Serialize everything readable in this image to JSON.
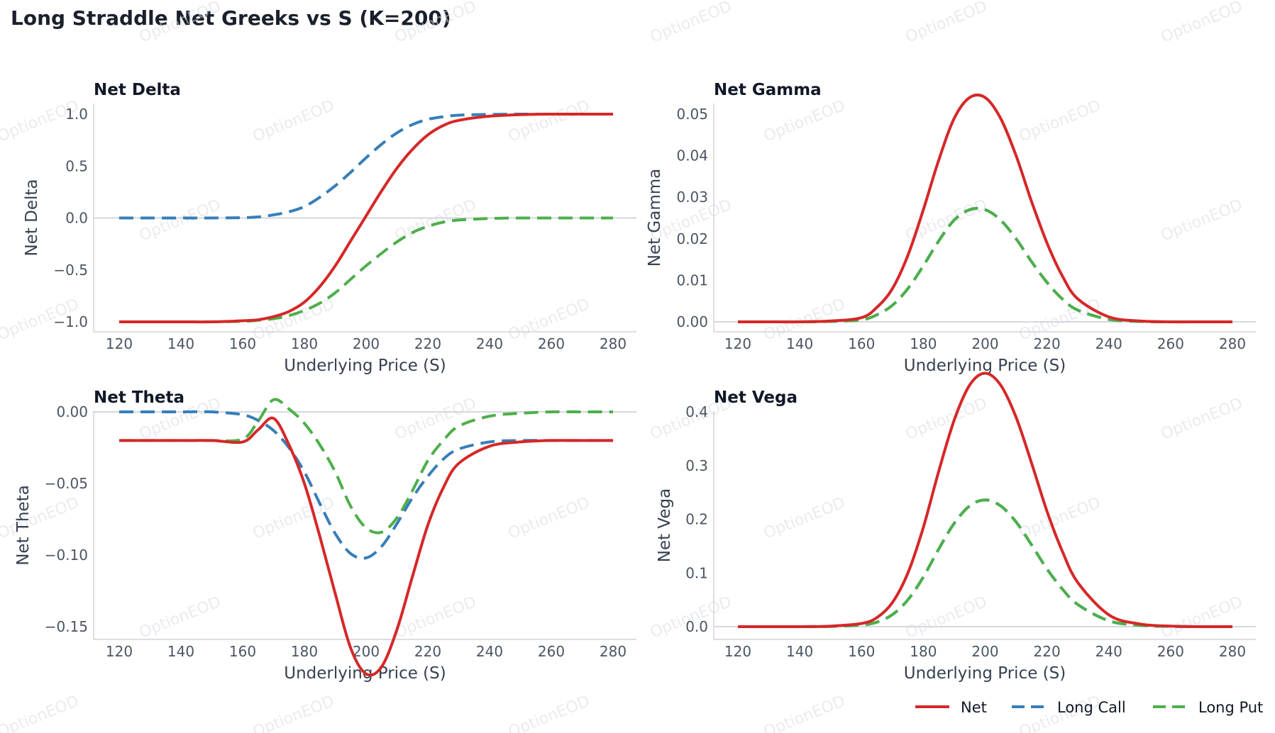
{
  "title": "Long Straddle Net Greeks vs S (K=200)",
  "watermark": "OptionEOD",
  "colors": {
    "net": "#d62728",
    "call": "#377eb8",
    "put": "#4daf4a"
  },
  "legend": {
    "placement": "bottom-right",
    "items": [
      {
        "key": "net",
        "label": "Net",
        "style": "solid"
      },
      {
        "key": "call",
        "label": "Long Call",
        "style": "dashed"
      },
      {
        "key": "put",
        "label": "Long Put",
        "style": "dashed"
      }
    ]
  },
  "chart_data": [
    {
      "type": "line",
      "title": "Net Delta",
      "xlabel": "Underlying Price (S)",
      "ylabel": "Net Delta",
      "xlim": [
        112,
        288
      ],
      "ylim": [
        -1.05,
        1.1
      ],
      "xticks": [
        120,
        140,
        160,
        180,
        200,
        220,
        240,
        260,
        280
      ],
      "yticks": [
        -1.0,
        -0.5,
        0.0,
        0.5,
        1.0
      ],
      "ytick_labels": [
        "−1.0",
        "−0.5",
        "0.0",
        "0.5",
        "1.0"
      ],
      "zero_line": true,
      "grid": false,
      "x": [
        120,
        130,
        140,
        150,
        160,
        165,
        170,
        175,
        180,
        185,
        190,
        195,
        200,
        205,
        210,
        215,
        220,
        225,
        230,
        240,
        250,
        260,
        270,
        280
      ],
      "series": [
        {
          "name": "Net",
          "key": "net",
          "values": [
            -1.0,
            -1.0,
            -1.0,
            -1.0,
            -0.99,
            -0.98,
            -0.95,
            -0.9,
            -0.81,
            -0.66,
            -0.46,
            -0.22,
            0.02,
            0.26,
            0.48,
            0.66,
            0.8,
            0.89,
            0.94,
            0.98,
            0.995,
            1.0,
            1.0,
            1.0
          ]
        },
        {
          "name": "Long Call",
          "key": "call",
          "values": [
            0.0,
            0.0,
            0.0,
            0.0,
            0.003,
            0.01,
            0.03,
            0.06,
            0.11,
            0.2,
            0.31,
            0.44,
            0.58,
            0.71,
            0.82,
            0.9,
            0.95,
            0.975,
            0.99,
            0.997,
            1.0,
            1.0,
            1.0,
            1.0
          ]
        },
        {
          "name": "Long Put",
          "key": "put",
          "values": [
            -1.0,
            -1.0,
            -1.0,
            -1.0,
            -0.995,
            -0.985,
            -0.97,
            -0.94,
            -0.89,
            -0.82,
            -0.72,
            -0.59,
            -0.46,
            -0.34,
            -0.23,
            -0.14,
            -0.08,
            -0.04,
            -0.02,
            -0.005,
            0.0,
            0.0,
            0.0,
            0.0
          ]
        }
      ]
    },
    {
      "type": "line",
      "title": "Net Gamma",
      "xlabel": "Underlying Price (S)",
      "ylabel": "Net Gamma",
      "xlim": [
        112,
        288
      ],
      "ylim": [
        -0.003,
        0.057
      ],
      "xticks": [
        120,
        140,
        160,
        180,
        200,
        220,
        240,
        260,
        280
      ],
      "yticks": [
        0.0,
        0.01,
        0.02,
        0.03,
        0.04,
        0.05
      ],
      "ytick_labels": [
        "0.00",
        "0.01",
        "0.02",
        "0.03",
        "0.04",
        "0.05"
      ],
      "zero_line": true,
      "grid": false,
      "x": [
        120,
        130,
        140,
        150,
        160,
        165,
        170,
        175,
        180,
        185,
        190,
        195,
        200,
        205,
        210,
        215,
        220,
        225,
        230,
        240,
        250,
        260,
        270,
        280
      ],
      "series": [
        {
          "name": "Net",
          "key": "net",
          "values": [
            0.0,
            0.0,
            0.0,
            0.0002,
            0.001,
            0.0035,
            0.008,
            0.016,
            0.027,
            0.039,
            0.049,
            0.054,
            0.054,
            0.049,
            0.04,
            0.029,
            0.019,
            0.011,
            0.0055,
            0.0012,
            0.0002,
            0.0,
            0.0,
            0.0
          ]
        },
        {
          "name": "Long Call",
          "key": "call",
          "values": [
            0.0,
            0.0,
            0.0,
            0.0001,
            0.0005,
            0.0017,
            0.004,
            0.008,
            0.0135,
            0.0195,
            0.0245,
            0.027,
            0.027,
            0.0245,
            0.02,
            0.0145,
            0.0095,
            0.0055,
            0.0028,
            0.0006,
            0.0001,
            0.0,
            0.0,
            0.0
          ]
        },
        {
          "name": "Long Put",
          "key": "put",
          "values": [
            0.0,
            0.0,
            0.0,
            0.0001,
            0.0005,
            0.0017,
            0.004,
            0.008,
            0.0135,
            0.0195,
            0.0245,
            0.027,
            0.027,
            0.0245,
            0.02,
            0.0145,
            0.0095,
            0.0055,
            0.0028,
            0.0006,
            0.0001,
            0.0,
            0.0,
            0.0
          ]
        }
      ]
    },
    {
      "type": "line",
      "title": "Net Theta",
      "xlabel": "Underlying Price (S)",
      "ylabel": "Net Theta",
      "xlim": [
        112,
        288
      ],
      "ylim": [
        -0.195,
        0.0
      ],
      "xticks": [
        120,
        140,
        160,
        180,
        200,
        220,
        240,
        260,
        280
      ],
      "yticks": [
        -0.15,
        -0.1,
        -0.05,
        0.0
      ],
      "ytick_labels": [
        "−0.15",
        "−0.10",
        "−0.05",
        "0.00"
      ],
      "zero_line": true,
      "grid": false,
      "x": [
        120,
        130,
        140,
        150,
        160,
        165,
        170,
        175,
        180,
        185,
        190,
        195,
        200,
        205,
        210,
        215,
        220,
        225,
        230,
        240,
        250,
        260,
        270,
        280
      ],
      "series": [
        {
          "name": "Net",
          "key": "net",
          "values": [
            -0.02,
            -0.02,
            -0.02,
            -0.02,
            -0.021,
            -0.0125,
            -0.0045,
            -0.023,
            -0.05,
            -0.087,
            -0.127,
            -0.165,
            -0.183,
            -0.178,
            -0.152,
            -0.115,
            -0.079,
            -0.053,
            -0.036,
            -0.024,
            -0.021,
            -0.02,
            -0.02,
            -0.02
          ]
        },
        {
          "name": "Long Call",
          "key": "call",
          "values": [
            0.0,
            0.0,
            0.0,
            0.0,
            -0.002,
            -0.006,
            -0.013,
            -0.025,
            -0.042,
            -0.064,
            -0.085,
            -0.099,
            -0.102,
            -0.094,
            -0.078,
            -0.06,
            -0.045,
            -0.033,
            -0.026,
            -0.021,
            -0.02,
            -0.02,
            -0.02,
            -0.02
          ]
        },
        {
          "name": "Long Put",
          "key": "put",
          "values": [
            -0.02,
            -0.02,
            -0.02,
            -0.02,
            -0.019,
            -0.0065,
            0.0085,
            0.002,
            -0.008,
            -0.023,
            -0.042,
            -0.066,
            -0.081,
            -0.084,
            -0.074,
            -0.055,
            -0.034,
            -0.02,
            -0.01,
            -0.003,
            -0.001,
            0.0,
            0.0,
            0.0
          ]
        }
      ]
    },
    {
      "type": "line",
      "title": "Net Vega",
      "xlabel": "Underlying Price (S)",
      "ylabel": "Net Vega",
      "xlim": [
        112,
        288
      ],
      "ylim": [
        -0.025,
        0.49
      ],
      "xticks": [
        120,
        140,
        160,
        180,
        200,
        220,
        240,
        260,
        280
      ],
      "yticks": [
        0.0,
        0.1,
        0.2,
        0.3,
        0.4
      ],
      "ytick_labels": [
        "0.0",
        "0.1",
        "0.2",
        "0.3",
        "0.4"
      ],
      "zero_line": true,
      "grid": false,
      "x": [
        120,
        130,
        140,
        150,
        160,
        165,
        170,
        175,
        180,
        185,
        190,
        195,
        200,
        205,
        210,
        215,
        220,
        225,
        230,
        240,
        250,
        260,
        270,
        280
      ],
      "series": [
        {
          "name": "Net",
          "key": "net",
          "values": [
            0.0,
            0.0,
            0.0,
            0.001,
            0.006,
            0.017,
            0.045,
            0.1,
            0.185,
            0.29,
            0.385,
            0.45,
            0.472,
            0.45,
            0.39,
            0.305,
            0.215,
            0.14,
            0.082,
            0.022,
            0.005,
            0.001,
            0.0,
            0.0
          ]
        },
        {
          "name": "Long Call",
          "key": "call",
          "values": [
            0.0,
            0.0,
            0.0,
            0.0005,
            0.003,
            0.0085,
            0.0225,
            0.05,
            0.0925,
            0.145,
            0.1925,
            0.225,
            0.236,
            0.225,
            0.195,
            0.1525,
            0.1075,
            0.07,
            0.041,
            0.011,
            0.0025,
            0.0005,
            0.0,
            0.0
          ]
        },
        {
          "name": "Long Put",
          "key": "put",
          "values": [
            0.0,
            0.0,
            0.0,
            0.0005,
            0.003,
            0.0085,
            0.0225,
            0.05,
            0.0925,
            0.145,
            0.1925,
            0.225,
            0.236,
            0.225,
            0.195,
            0.1525,
            0.1075,
            0.07,
            0.041,
            0.011,
            0.0025,
            0.0005,
            0.0,
            0.0
          ]
        }
      ]
    }
  ]
}
